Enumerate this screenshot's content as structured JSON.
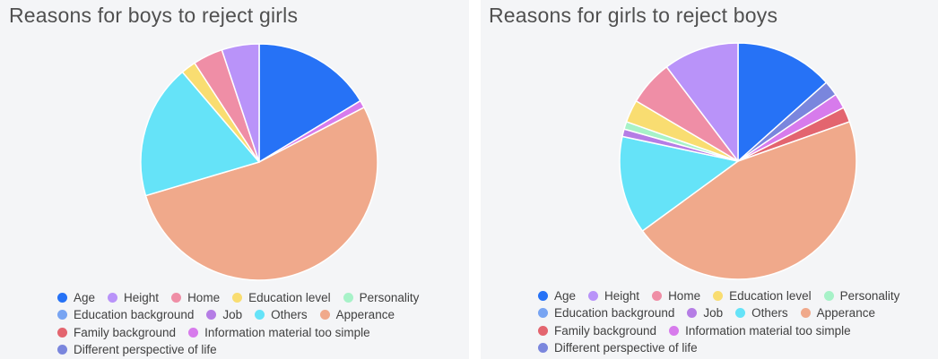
{
  "chart_data": [
    {
      "type": "pie",
      "title": "Reasons for boys to reject girls",
      "categories": [
        "Age",
        "Height",
        "Home",
        "Education level",
        "Personality",
        "Education background",
        "Job",
        "Others",
        "Apperance",
        "Family background",
        "Information material too simple",
        "Different perspective of life"
      ],
      "slices_clockwise_from_top": [
        {
          "name": "Age",
          "value": 16
        },
        {
          "name": "Information material too simple",
          "value": 1
        },
        {
          "name": "Apperance",
          "value": 52
        },
        {
          "name": "Others",
          "value": 18
        },
        {
          "name": "Education level",
          "value": 2
        },
        {
          "name": "Home",
          "value": 4
        },
        {
          "name": "Height",
          "value": 5
        }
      ],
      "legend_placement": "bottom"
    },
    {
      "type": "pie",
      "title": "Reasons for girls to reject boys",
      "categories": [
        "Age",
        "Height",
        "Home",
        "Education level",
        "Personality",
        "Education background",
        "Job",
        "Others",
        "Apperance",
        "Family background",
        "Information material too simple",
        "Different perspective of life"
      ],
      "slices_clockwise_from_top": [
        {
          "name": "Age",
          "value": 13
        },
        {
          "name": "Different perspective of life",
          "value": 2
        },
        {
          "name": "Information material too simple",
          "value": 2
        },
        {
          "name": "Family background",
          "value": 2
        },
        {
          "name": "Apperance",
          "value": 44
        },
        {
          "name": "Others",
          "value": 13
        },
        {
          "name": "Job",
          "value": 1
        },
        {
          "name": "Personality",
          "value": 1
        },
        {
          "name": "Education level",
          "value": 3
        },
        {
          "name": "Home",
          "value": 6
        },
        {
          "name": "Height",
          "value": 10
        }
      ],
      "legend_placement": "bottom"
    }
  ],
  "colors": {
    "Age": "#2672f6",
    "Height": "#b993f9",
    "Home": "#ef8ea6",
    "Education level": "#f9dd71",
    "Personality": "#a7f2c8",
    "Education background": "#78a4f2",
    "Job": "#b57de5",
    "Others": "#65e3f8",
    "Apperance": "#f0a98b",
    "Family background": "#e3656f",
    "Information material too simple": "#d77bec",
    "Different perspective of life": "#7a86dd"
  },
  "legend_rows": [
    [
      "Age",
      "Height",
      "Home",
      "Education level",
      "Personality"
    ],
    [
      "Education background",
      "Job",
      "Others",
      "Apperance"
    ],
    [
      "Family background",
      "Information material too simple"
    ],
    [
      "Different perspective of life"
    ]
  ]
}
